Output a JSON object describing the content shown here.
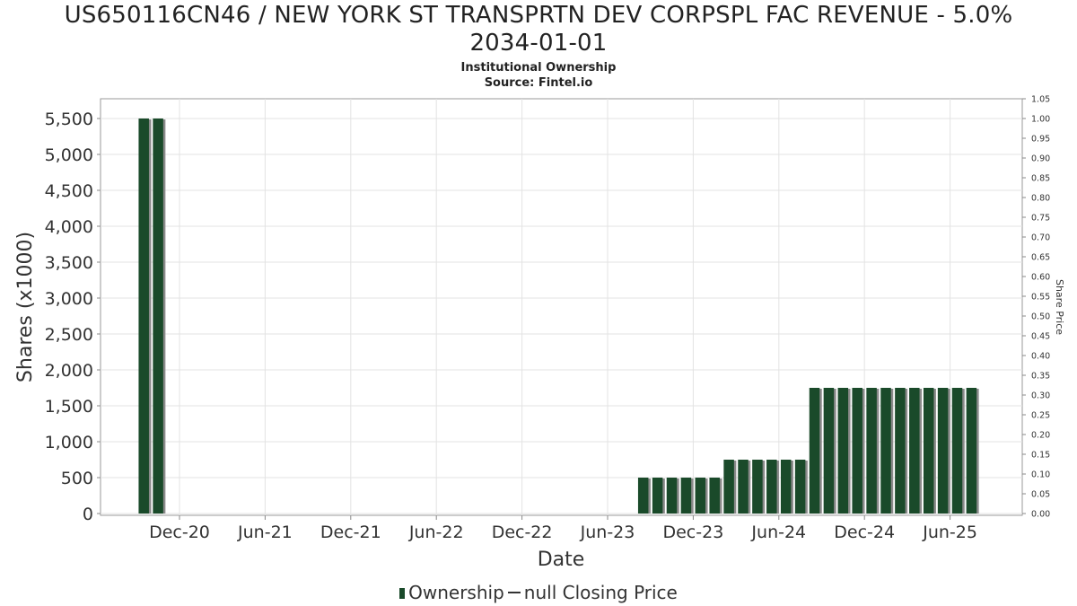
{
  "chart_data": {
    "type": "bar",
    "title_line1": "US650116CN46 / NEW YORK ST TRANSPRTN DEV CORPSPL FAC REVENUE - 5.0%",
    "title_line2": "2034-01-01",
    "subtitle": "Institutional Ownership",
    "source": "Source: Fintel.io",
    "xlabel": "Date",
    "ylabel": "Shares (x1000)",
    "y2label": "Share Price",
    "ylim": [
      0,
      5750
    ],
    "y2lim": [
      0,
      1.05
    ],
    "yticks": [
      "0",
      "500",
      "1,000",
      "1,500",
      "2,000",
      "2,500",
      "3,000",
      "3,500",
      "4,000",
      "4,500",
      "5,000",
      "5,500"
    ],
    "y2ticks": [
      "0.00",
      "0.05",
      "0.10",
      "0.15",
      "0.20",
      "0.25",
      "0.30",
      "0.35",
      "0.40",
      "0.45",
      "0.50",
      "0.55",
      "0.60",
      "0.65",
      "0.70",
      "0.75",
      "0.80",
      "0.85",
      "0.90",
      "0.95",
      "1.00",
      "1.05"
    ],
    "xticks": [
      "Dec-20",
      "Jun-21",
      "Dec-21",
      "Jun-22",
      "Dec-22",
      "Jun-23",
      "Dec-23",
      "Jun-24",
      "Dec-24",
      "Jun-25"
    ],
    "series": [
      {
        "name": "Ownership",
        "color": "#1a4a2a",
        "bars": [
          {
            "x": "2020-10",
            "value": 5500
          },
          {
            "x": "2020-11",
            "value": 5500
          },
          {
            "x": "2023-09",
            "value": 500
          },
          {
            "x": "2023-10",
            "value": 500
          },
          {
            "x": "2023-11",
            "value": 500
          },
          {
            "x": "2023-12",
            "value": 500
          },
          {
            "x": "2024-01",
            "value": 500
          },
          {
            "x": "2024-02",
            "value": 500
          },
          {
            "x": "2024-03",
            "value": 750
          },
          {
            "x": "2024-04",
            "value": 750
          },
          {
            "x": "2024-05",
            "value": 750
          },
          {
            "x": "2024-06",
            "value": 750
          },
          {
            "x": "2024-07",
            "value": 750
          },
          {
            "x": "2024-08",
            "value": 750
          },
          {
            "x": "2024-09",
            "value": 1750
          },
          {
            "x": "2024-10",
            "value": 1750
          },
          {
            "x": "2024-11",
            "value": 1750
          },
          {
            "x": "2024-12",
            "value": 1750
          },
          {
            "x": "2025-01",
            "value": 1750
          },
          {
            "x": "2025-02",
            "value": 1750
          },
          {
            "x": "2025-03",
            "value": 1750
          },
          {
            "x": "2025-04",
            "value": 1750
          },
          {
            "x": "2025-05",
            "value": 1750
          },
          {
            "x": "2025-06",
            "value": 1750
          },
          {
            "x": "2025-07",
            "value": 1750
          },
          {
            "x": "2025-08",
            "value": 1750
          }
        ]
      }
    ],
    "legend": {
      "items": [
        "Ownership",
        "null Closing Price"
      ],
      "placement": "bottom"
    },
    "grid": true
  }
}
